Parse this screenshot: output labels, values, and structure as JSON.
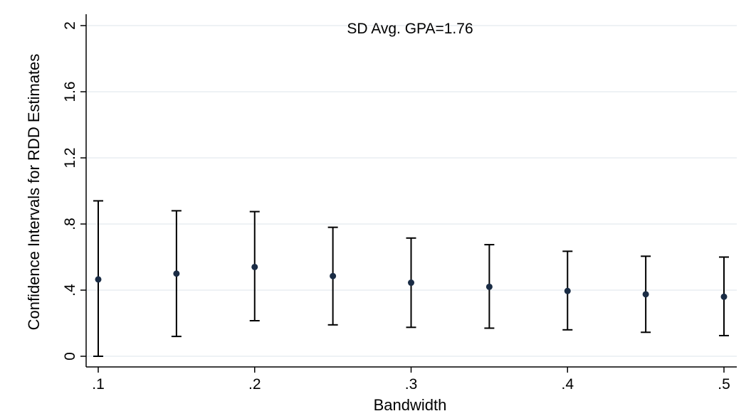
{
  "chart_data": {
    "type": "scatter",
    "subtype": "point-with-confidence-interval",
    "title": "",
    "annotation": "SD Avg. GPA=1.76",
    "xlabel": "Bandwidth",
    "ylabel": "Confidence Intervals for RDD Estimates",
    "xlim": [
      0.1,
      0.5
    ],
    "ylim": [
      0,
      2
    ],
    "x_ticks": [
      0.1,
      0.2,
      0.3,
      0.4,
      0.5
    ],
    "x_tick_labels": [
      ".1",
      ".2",
      ".3",
      ".4",
      ".5"
    ],
    "y_ticks": [
      0,
      0.4,
      0.8,
      1.2,
      1.6,
      2
    ],
    "y_tick_labels": [
      "0",
      ".4",
      ".8",
      "1.2",
      "1.6",
      "2"
    ],
    "grid": "horizontal",
    "series": [
      {
        "x": [
          0.1,
          0.15,
          0.2,
          0.25,
          0.3,
          0.35,
          0.4,
          0.45,
          0.5
        ],
        "estimate": [
          0.465,
          0.5,
          0.54,
          0.485,
          0.445,
          0.42,
          0.395,
          0.375,
          0.36
        ],
        "ci_low": [
          0.0,
          0.12,
          0.215,
          0.19,
          0.175,
          0.17,
          0.16,
          0.145,
          0.125
        ],
        "ci_high": [
          0.94,
          0.88,
          0.875,
          0.78,
          0.715,
          0.675,
          0.635,
          0.605,
          0.6
        ]
      }
    ],
    "colors": {
      "point": "#1a2c45",
      "errorbar": "#000000",
      "grid": "#e8eef2",
      "axis": "#000000"
    }
  }
}
